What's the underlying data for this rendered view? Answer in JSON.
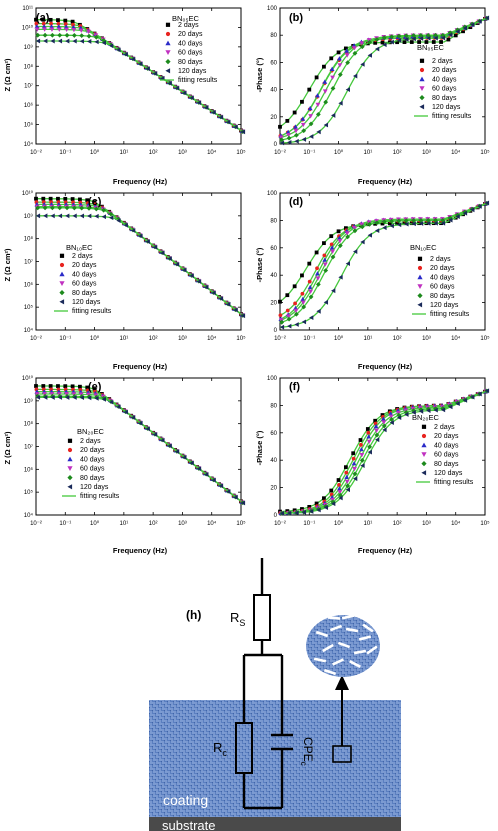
{
  "legend_labels": [
    "2 days",
    "20 days",
    "40 days",
    "60 days",
    "80 days",
    "120 days"
  ],
  "fit_label": "fitting results",
  "series_colors": [
    "#000000",
    "#e8231f",
    "#2a2ac8",
    "#c030c0",
    "#1d8a1d",
    "#1a2a5a"
  ],
  "fit_color": "#45c83c",
  "xlabel": "Frequency (Hz)",
  "z_ylabel": "Z (Ω cm²)",
  "phase_ylabel": "-Phase (°)",
  "panels": [
    {
      "letter": "(a)",
      "sample": "BN₀₅EC",
      "kind": "impedance"
    },
    {
      "letter": "(b)",
      "sample": "BN₀₅EC",
      "kind": "phase"
    },
    {
      "letter": "(c)",
      "sample": "BN₁₀EC",
      "kind": "impedance"
    },
    {
      "letter": "(d)",
      "sample": "BN₁₀EC",
      "kind": "phase"
    },
    {
      "letter": "(e)",
      "sample": "BN₂₀EC",
      "kind": "impedance"
    },
    {
      "letter": "(f)",
      "sample": "BN₂₀EC",
      "kind": "phase"
    }
  ],
  "circuit": {
    "letter": "(h)",
    "rs_label": "R",
    "rs_sub": "S",
    "rc_label": "R",
    "rc_sub": "c",
    "cpe_label": "CPE",
    "cpe_sub": "c",
    "coating_label": "coating",
    "substrate_label": "substrate"
  },
  "chart_data": [
    {
      "type": "scatter",
      "panel": "(a)",
      "xscale": "log",
      "yscale": "log",
      "xlim": [
        0.01,
        100000
      ],
      "ylim": [
        10000,
        100000000000
      ],
      "x_ticks": [
        "10⁻²",
        "10⁻¹",
        "10⁰",
        "10¹",
        "10²",
        "10³",
        "10⁴",
        "10⁵"
      ],
      "y_ticks": [
        "10⁴",
        "10⁵",
        "10⁶",
        "10⁷",
        "10⁸",
        "10⁹",
        "10¹⁰",
        "10¹¹"
      ],
      "series_low_freq_log10Z": [
        10.4,
        10.2,
        10.05,
        9.9,
        9.6,
        9.3
      ],
      "knee_log10f": [
        -1.2,
        -1.0,
        -0.9,
        -0.7,
        -0.5,
        -0.3
      ],
      "hf_log10Z_at_1e5": 4.7,
      "slope": -1
    },
    {
      "type": "scatter",
      "panel": "(b)",
      "xscale": "log",
      "xlim": [
        0.01,
        100000
      ],
      "ylim": [
        0,
        100
      ],
      "x_ticks": [
        "10⁻²",
        "10⁻¹",
        "10⁰",
        "10¹",
        "10²",
        "10³",
        "10⁴",
        "10⁵"
      ],
      "y_ticks": [
        "0",
        "20",
        "40",
        "60",
        "80",
        "100"
      ],
      "series_phase_low": [
        5,
        2,
        2,
        2,
        1,
        0
      ],
      "series_mid_log10f": [
        -1.0,
        -0.6,
        -0.6,
        -0.4,
        -0.2,
        0.3
      ],
      "series_plateau": [
        75,
        78,
        79,
        80,
        80,
        78
      ],
      "phase_at_1e5": 92
    },
    {
      "type": "scatter",
      "panel": "(c)",
      "xscale": "log",
      "yscale": "log",
      "xlim": [
        0.01,
        100000
      ],
      "ylim": [
        10000,
        10000000000
      ],
      "x_ticks": [
        "10⁻²",
        "10⁻¹",
        "10⁰",
        "10¹",
        "10²",
        "10³",
        "10⁴",
        "10⁵"
      ],
      "y_ticks": [
        "10⁴",
        "10⁵",
        "10⁶",
        "10⁷",
        "10⁸",
        "10⁹",
        "10¹⁰"
      ],
      "series_low_freq_log10Z": [
        9.75,
        9.6,
        9.5,
        9.4,
        9.35,
        9.0
      ],
      "knee_log10f": [
        -1.3,
        -1.1,
        -1.0,
        -0.9,
        -0.9,
        -0.6
      ],
      "hf_log10Z_at_1e5": 4.7,
      "slope": -1
    },
    {
      "type": "scatter",
      "panel": "(d)",
      "xscale": "log",
      "xlim": [
        0.01,
        100000
      ],
      "ylim": [
        0,
        100
      ],
      "x_ticks": [
        "10⁻²",
        "10⁻¹",
        "10⁰",
        "10¹",
        "10²",
        "10³",
        "10⁴",
        "10⁵"
      ],
      "y_ticks": [
        "0",
        "20",
        "40",
        "60",
        "80",
        "100"
      ],
      "series_phase_low": [
        12,
        5,
        3,
        3,
        2,
        1
      ],
      "series_mid_log10f": [
        -1.1,
        -0.8,
        -0.7,
        -0.6,
        -0.5,
        0.1
      ],
      "series_plateau": [
        78,
        80,
        81,
        81,
        80,
        78
      ],
      "phase_at_1e5": 92
    },
    {
      "type": "scatter",
      "panel": "(e)",
      "xscale": "log",
      "yscale": "log",
      "xlim": [
        0.01,
        100000
      ],
      "ylim": [
        10000,
        10000000000
      ],
      "x_ticks": [
        "10⁻²",
        "10⁻¹",
        "10⁰",
        "10¹",
        "10²",
        "10³",
        "10⁴",
        "10⁵"
      ],
      "y_ticks": [
        "10⁴",
        "10⁵",
        "10⁶",
        "10⁷",
        "10⁸",
        "10⁹",
        "10¹⁰"
      ],
      "series_low_freq_log10Z": [
        9.65,
        9.5,
        9.4,
        9.3,
        9.2,
        9.15
      ],
      "knee_log10f": [
        -0.3,
        -0.2,
        -0.1,
        0.0,
        0.1,
        0.15
      ],
      "hf_log10Z_at_1e5": 4.6,
      "slope": -1
    },
    {
      "type": "scatter",
      "panel": "(f)",
      "xscale": "log",
      "xlim": [
        0.01,
        100000
      ],
      "ylim": [
        0,
        100
      ],
      "x_ticks": [
        "10⁻²",
        "10⁻¹",
        "10⁰",
        "10¹",
        "10²",
        "10³",
        "10⁴",
        "10⁵"
      ],
      "y_ticks": [
        "0",
        "20",
        "40",
        "60",
        "80",
        "100"
      ],
      "series_phase_low": [
        2,
        1,
        1,
        1,
        1,
        1
      ],
      "series_mid_log10f": [
        0.4,
        0.5,
        0.6,
        0.7,
        0.8,
        0.9
      ],
      "series_plateau": [
        80,
        80,
        80,
        79,
        78,
        77
      ],
      "phase_at_1e5": 90
    }
  ]
}
